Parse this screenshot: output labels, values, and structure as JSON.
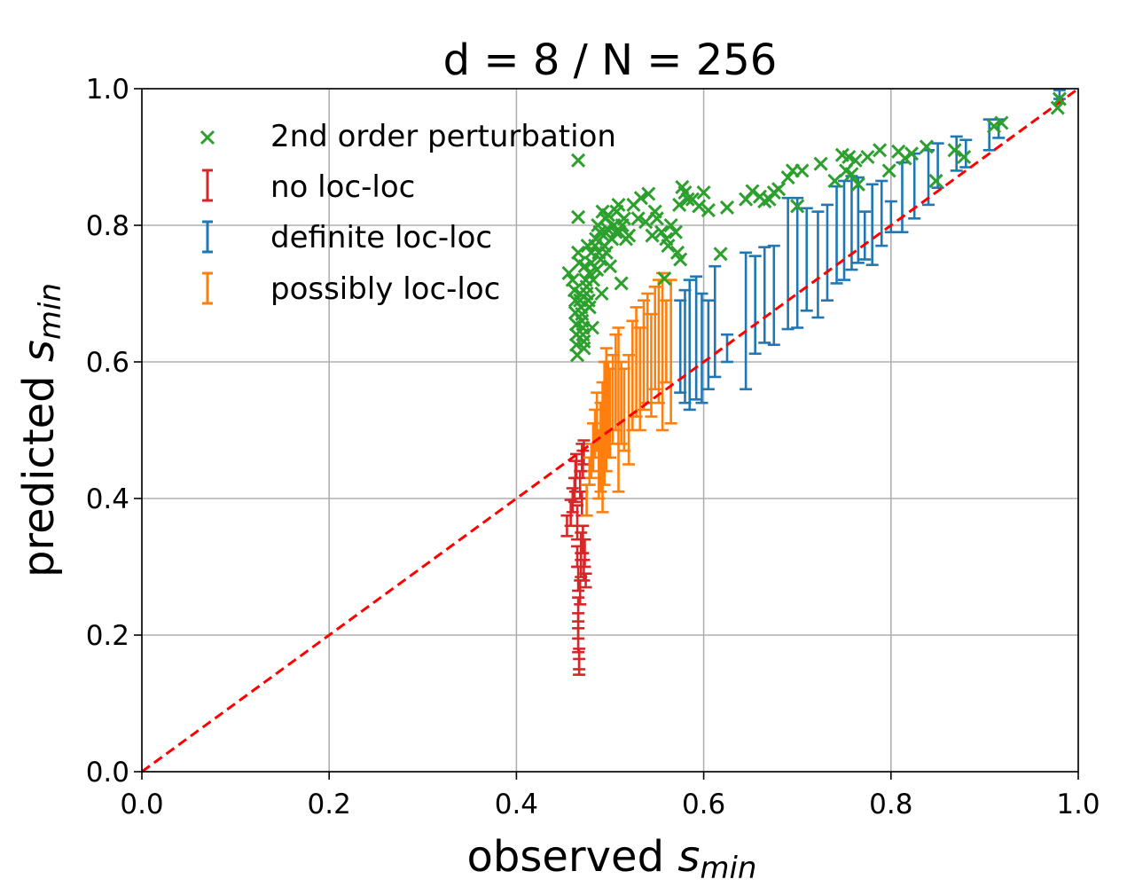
{
  "chart_data": {
    "type": "scatter",
    "title": "d = 8 / N = 256",
    "xlabel": {
      "main": "observed ",
      "symbol": "s",
      "subscript": "min"
    },
    "ylabel": {
      "main": "predicted ",
      "symbol": "s",
      "subscript": "min"
    },
    "xlim": [
      0.0,
      1.0
    ],
    "ylim": [
      0.0,
      1.0
    ],
    "xticks": [
      "0.0",
      "0.2",
      "0.4",
      "0.6",
      "0.8",
      "1.0"
    ],
    "yticks": [
      "0.0",
      "0.2",
      "0.4",
      "0.6",
      "0.8",
      "1.0"
    ],
    "grid": true,
    "legend_position": "upper-left",
    "colors": {
      "green": "#2ca02c",
      "red": "#d62728",
      "blue": "#1f77b4",
      "orange": "#ff7f0e",
      "reference": "#ff0000"
    },
    "reference_line": {
      "style": "dashed",
      "from": [
        0,
        0
      ],
      "to": [
        1,
        1
      ]
    },
    "series": [
      {
        "name": "2nd order perturbation",
        "kind": "scatter-x",
        "color": "#2ca02c",
        "points": [
          [
            0.456,
            0.73
          ],
          [
            0.46,
            0.72
          ],
          [
            0.462,
            0.705
          ],
          [
            0.463,
            0.69
          ],
          [
            0.463,
            0.672
          ],
          [
            0.464,
            0.655
          ],
          [
            0.464,
            0.64
          ],
          [
            0.464,
            0.625
          ],
          [
            0.465,
            0.61
          ],
          [
            0.466,
            0.895
          ],
          [
            0.466,
            0.812
          ],
          [
            0.466,
            0.76
          ],
          [
            0.467,
            0.745
          ],
          [
            0.468,
            0.7
          ],
          [
            0.468,
            0.69
          ],
          [
            0.469,
            0.68
          ],
          [
            0.47,
            0.67
          ],
          [
            0.47,
            0.66
          ],
          [
            0.471,
            0.65
          ],
          [
            0.471,
            0.64
          ],
          [
            0.472,
            0.63
          ],
          [
            0.472,
            0.62
          ],
          [
            0.473,
            0.74
          ],
          [
            0.474,
            0.72
          ],
          [
            0.475,
            0.71
          ],
          [
            0.475,
            0.7
          ],
          [
            0.476,
            0.77
          ],
          [
            0.477,
            0.69
          ],
          [
            0.478,
            0.68
          ],
          [
            0.478,
            0.73
          ],
          [
            0.48,
            0.76
          ],
          [
            0.48,
            0.745
          ],
          [
            0.481,
            0.65
          ],
          [
            0.482,
            0.72
          ],
          [
            0.484,
            0.77
          ],
          [
            0.485,
            0.78
          ],
          [
            0.486,
            0.735
          ],
          [
            0.487,
            0.8
          ],
          [
            0.488,
            0.76
          ],
          [
            0.489,
            0.79
          ],
          [
            0.49,
            0.75
          ],
          [
            0.491,
            0.7
          ],
          [
            0.492,
            0.82
          ],
          [
            0.493,
            0.785
          ],
          [
            0.494,
            0.77
          ],
          [
            0.495,
            0.81
          ],
          [
            0.496,
            0.76
          ],
          [
            0.497,
            0.795
          ],
          [
            0.498,
            0.815
          ],
          [
            0.5,
            0.74
          ],
          [
            0.502,
            0.78
          ],
          [
            0.504,
            0.8
          ],
          [
            0.506,
            0.79
          ],
          [
            0.507,
            0.82
          ],
          [
            0.509,
            0.83
          ],
          [
            0.51,
            0.79
          ],
          [
            0.512,
            0.715
          ],
          [
            0.513,
            0.8
          ],
          [
            0.515,
            0.81
          ],
          [
            0.517,
            0.78
          ],
          [
            0.52,
            0.785
          ],
          [
            0.525,
            0.83
          ],
          [
            0.53,
            0.81
          ],
          [
            0.533,
            0.84
          ],
          [
            0.538,
            0.805
          ],
          [
            0.541,
            0.846
          ],
          [
            0.545,
            0.785
          ],
          [
            0.548,
            0.82
          ],
          [
            0.55,
            0.81
          ],
          [
            0.555,
            0.79
          ],
          [
            0.558,
            0.722
          ],
          [
            0.56,
            0.78
          ],
          [
            0.562,
            0.77
          ],
          [
            0.565,
            0.8
          ],
          [
            0.57,
            0.79
          ],
          [
            0.572,
            0.76
          ],
          [
            0.574,
            0.83
          ],
          [
            0.575,
            0.75
          ],
          [
            0.577,
            0.856
          ],
          [
            0.58,
            0.848
          ],
          [
            0.583,
            0.838
          ],
          [
            0.588,
            0.838
          ],
          [
            0.595,
            0.828
          ],
          [
            0.6,
            0.848
          ],
          [
            0.605,
            0.822
          ],
          [
            0.618,
            0.758
          ],
          [
            0.625,
            0.826
          ],
          [
            0.645,
            0.838
          ],
          [
            0.652,
            0.85
          ],
          [
            0.66,
            0.842
          ],
          [
            0.665,
            0.835
          ],
          [
            0.67,
            0.838
          ],
          [
            0.675,
            0.848
          ],
          [
            0.68,
            0.853
          ],
          [
            0.69,
            0.87
          ],
          [
            0.695,
            0.88
          ],
          [
            0.7,
            0.828
          ],
          [
            0.705,
            0.88
          ],
          [
            0.725,
            0.89
          ],
          [
            0.74,
            0.865
          ],
          [
            0.748,
            0.903
          ],
          [
            0.752,
            0.88
          ],
          [
            0.755,
            0.9
          ],
          [
            0.758,
            0.875
          ],
          [
            0.762,
            0.895
          ],
          [
            0.765,
            0.86
          ],
          [
            0.775,
            0.9
          ],
          [
            0.788,
            0.91
          ],
          [
            0.798,
            0.88
          ],
          [
            0.808,
            0.908
          ],
          [
            0.815,
            0.898
          ],
          [
            0.822,
            0.905
          ],
          [
            0.838,
            0.915
          ],
          [
            0.848,
            0.865
          ],
          [
            0.868,
            0.91
          ],
          [
            0.878,
            0.9
          ],
          [
            0.91,
            0.945
          ],
          [
            0.918,
            0.95
          ],
          [
            0.978,
            0.972
          ],
          [
            0.98,
            0.985
          ]
        ]
      },
      {
        "name": "no loc-loc",
        "kind": "errorbar",
        "color": "#d62728",
        "intervals": [
          [
            0.454,
            0.375,
            0.345
          ],
          [
            0.458,
            0.398,
            0.36
          ],
          [
            0.46,
            0.415,
            0.38
          ],
          [
            0.462,
            0.43,
            0.395
          ],
          [
            0.463,
            0.455,
            0.41
          ],
          [
            0.464,
            0.465,
            0.43
          ],
          [
            0.465,
            0.39,
            0.34
          ],
          [
            0.465,
            0.33,
            0.3
          ],
          [
            0.466,
            0.3,
            0.265
          ],
          [
            0.466,
            0.255,
            0.22
          ],
          [
            0.466,
            0.232,
            0.195
          ],
          [
            0.466,
            0.21,
            0.175
          ],
          [
            0.467,
            0.18,
            0.15
          ],
          [
            0.467,
            0.165,
            0.142
          ],
          [
            0.468,
            0.44,
            0.4
          ],
          [
            0.468,
            0.28,
            0.245
          ],
          [
            0.469,
            0.35,
            0.31
          ],
          [
            0.469,
            0.32,
            0.285
          ],
          [
            0.47,
            0.48,
            0.44
          ],
          [
            0.47,
            0.41,
            0.375
          ],
          [
            0.471,
            0.47,
            0.43
          ],
          [
            0.471,
            0.36,
            0.32
          ],
          [
            0.472,
            0.485,
            0.45
          ],
          [
            0.472,
            0.31,
            0.28
          ],
          [
            0.473,
            0.34,
            0.3
          ],
          [
            0.474,
            0.29,
            0.27
          ]
        ]
      },
      {
        "name": "definite loc-loc",
        "kind": "errorbar",
        "color": "#1f77b4",
        "intervals": [
          [
            0.575,
            0.69,
            0.555
          ],
          [
            0.58,
            0.705,
            0.54
          ],
          [
            0.585,
            0.72,
            0.53
          ],
          [
            0.592,
            0.725,
            0.545
          ],
          [
            0.598,
            0.7,
            0.54
          ],
          [
            0.605,
            0.69,
            0.56
          ],
          [
            0.612,
            0.74,
            0.578
          ],
          [
            0.625,
            0.64,
            0.6
          ],
          [
            0.645,
            0.76,
            0.56
          ],
          [
            0.655,
            0.755,
            0.612
          ],
          [
            0.665,
            0.768,
            0.628
          ],
          [
            0.675,
            0.77,
            0.625
          ],
          [
            0.69,
            0.84,
            0.648
          ],
          [
            0.7,
            0.84,
            0.65
          ],
          [
            0.71,
            0.825,
            0.675
          ],
          [
            0.722,
            0.82,
            0.665
          ],
          [
            0.732,
            0.83,
            0.69
          ],
          [
            0.742,
            0.857,
            0.715
          ],
          [
            0.75,
            0.865,
            0.72
          ],
          [
            0.758,
            0.872,
            0.735
          ],
          [
            0.765,
            0.87,
            0.745
          ],
          [
            0.772,
            0.82,
            0.75
          ],
          [
            0.78,
            0.86,
            0.742
          ],
          [
            0.79,
            0.865,
            0.77
          ],
          [
            0.8,
            0.835,
            0.79
          ],
          [
            0.812,
            0.892,
            0.79
          ],
          [
            0.825,
            0.905,
            0.81
          ],
          [
            0.84,
            0.91,
            0.83
          ],
          [
            0.85,
            0.92,
            0.855
          ],
          [
            0.87,
            0.93,
            0.88
          ],
          [
            0.88,
            0.925,
            0.885
          ],
          [
            0.905,
            0.955,
            0.91
          ],
          [
            0.915,
            0.955,
            0.928
          ],
          [
            0.98,
            0.998,
            0.985
          ]
        ]
      },
      {
        "name": "possibly loc-loc",
        "kind": "errorbar",
        "color": "#ff7f0e",
        "intervals": [
          [
            0.475,
            0.42,
            0.375
          ],
          [
            0.478,
            0.46,
            0.42
          ],
          [
            0.48,
            0.48,
            0.43
          ],
          [
            0.482,
            0.51,
            0.44
          ],
          [
            0.484,
            0.53,
            0.46
          ],
          [
            0.486,
            0.555,
            0.47
          ],
          [
            0.488,
            0.5,
            0.4
          ],
          [
            0.49,
            0.54,
            0.41
          ],
          [
            0.492,
            0.57,
            0.38
          ],
          [
            0.494,
            0.6,
            0.42
          ],
          [
            0.496,
            0.62,
            0.44
          ],
          [
            0.498,
            0.6,
            0.46
          ],
          [
            0.5,
            0.59,
            0.46
          ],
          [
            0.503,
            0.61,
            0.48
          ],
          [
            0.506,
            0.64,
            0.5
          ],
          [
            0.509,
            0.65,
            0.41
          ],
          [
            0.512,
            0.6,
            0.48
          ],
          [
            0.515,
            0.59,
            0.47
          ],
          [
            0.52,
            0.61,
            0.45
          ],
          [
            0.524,
            0.66,
            0.5
          ],
          [
            0.528,
            0.68,
            0.52
          ],
          [
            0.532,
            0.65,
            0.5
          ],
          [
            0.536,
            0.69,
            0.53
          ],
          [
            0.54,
            0.7,
            0.54
          ],
          [
            0.544,
            0.67,
            0.52
          ],
          [
            0.548,
            0.71,
            0.56
          ],
          [
            0.552,
            0.72,
            0.54
          ],
          [
            0.556,
            0.73,
            0.5
          ],
          [
            0.56,
            0.69,
            0.57
          ],
          [
            0.565,
            0.72,
            0.51
          ]
        ]
      }
    ]
  }
}
